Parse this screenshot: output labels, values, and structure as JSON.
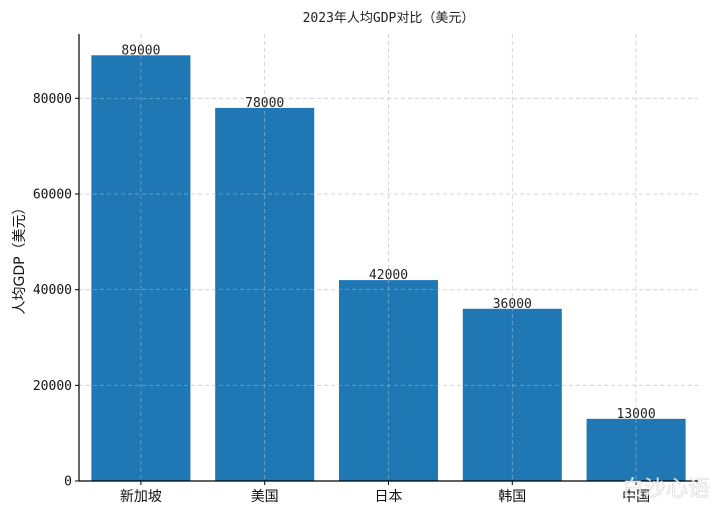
{
  "chart_data": {
    "type": "bar",
    "title": "2023年人均GDP对比（美元）",
    "xlabel": "",
    "ylabel": "人均GDP（美元）",
    "categories": [
      "新加坡",
      "美国",
      "日本",
      "韩国",
      "中国"
    ],
    "values": [
      89000,
      78000,
      42000,
      36000,
      13000
    ],
    "value_labels": [
      "89000",
      "78000",
      "42000",
      "36000",
      "13000"
    ],
    "yticks": [
      0,
      20000,
      40000,
      60000,
      80000
    ],
    "ytick_labels": [
      "0",
      "20000",
      "40000",
      "60000",
      "80000"
    ],
    "ylim": [
      0,
      93450
    ],
    "grid": true,
    "legend": "none",
    "bar_color": "#1f77b4",
    "grid_color": "#cccccc"
  },
  "watermark": {
    "text": "白沙心语"
  }
}
